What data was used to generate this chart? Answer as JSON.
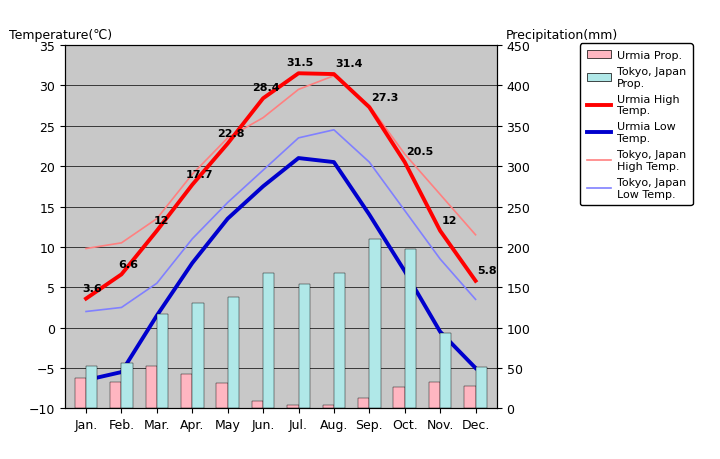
{
  "months": [
    "Jan.",
    "Feb.",
    "Mar.",
    "Apr.",
    "May",
    "Jun.",
    "Jul.",
    "Aug.",
    "Sep.",
    "Oct.",
    "Nov.",
    "Dec."
  ],
  "urmia_high": [
    3.6,
    6.6,
    12.0,
    17.7,
    22.8,
    28.4,
    31.5,
    31.4,
    27.3,
    20.5,
    12.0,
    5.8
  ],
  "urmia_low": [
    -6.5,
    -5.5,
    1.5,
    8.0,
    13.5,
    17.5,
    21.0,
    20.5,
    14.0,
    7.0,
    -0.5,
    -5.0
  ],
  "tokyo_high": [
    9.8,
    10.5,
    13.5,
    19.0,
    23.5,
    26.0,
    29.5,
    31.2,
    27.5,
    21.5,
    16.5,
    11.5
  ],
  "tokyo_low": [
    2.0,
    2.5,
    5.5,
    11.0,
    15.5,
    19.5,
    23.5,
    24.5,
    20.5,
    14.5,
    8.5,
    3.5
  ],
  "urmia_precip_mm": [
    38,
    33,
    52,
    42,
    32,
    9,
    4,
    4,
    13,
    27,
    33,
    28
  ],
  "tokyo_precip_mm": [
    52,
    56,
    117,
    130,
    138,
    168,
    154,
    168,
    210,
    197,
    93,
    51
  ],
  "fig_bg_color": "#ffffff",
  "plot_bg_color": "#c8c8c8",
  "urmia_high_color": "#ff0000",
  "urmia_low_color": "#0000cd",
  "tokyo_high_color": "#ff8080",
  "tokyo_low_color": "#8080ff",
  "urmia_precip_color": "#ffb6c1",
  "tokyo_precip_color": "#b0e8e8",
  "grid_color": "#000000",
  "title_left": "Temperature(℃)",
  "title_right": "Precipitation(mm)",
  "ylim_left": [
    -10,
    35
  ],
  "ylim_right": [
    0,
    450
  ],
  "yticks_left": [
    -10,
    -5,
    0,
    5,
    10,
    15,
    20,
    25,
    30,
    35
  ],
  "yticks_right": [
    0,
    50,
    100,
    150,
    200,
    250,
    300,
    350,
    400,
    450
  ],
  "urmia_high_labels": [
    "3.6",
    "6.6",
    "12",
    "17.7",
    "22.8",
    "28.4",
    "31.5",
    "31.4",
    "27.3",
    "20.5",
    "12",
    "5.8"
  ]
}
